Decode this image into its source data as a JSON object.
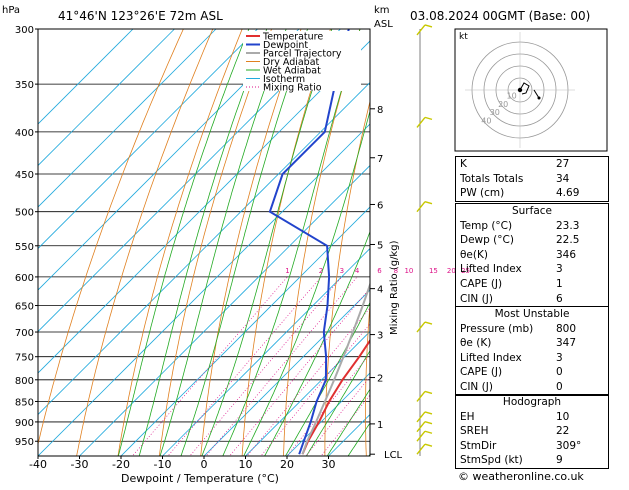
{
  "header": {
    "hpa_label": "hPa",
    "location": "41°46'N 123°26'E 72m ASL",
    "km_label": "km",
    "asl_label": "ASL",
    "date": "03.08.2024 00GMT (Base: 00)"
  },
  "colors": {
    "temperature": "#e03030",
    "dewpoint": "#2244cc",
    "parcel": "#aaaaaa",
    "dry_adiabat": "#e08020",
    "wet_adiabat": "#22aa22",
    "isotherm": "#22aadd",
    "mixing_ratio": "#dd1188",
    "wind": "#c8c800"
  },
  "chart_data": {
    "type": "line",
    "title": "41°46'N 123°26'E 72m ASL",
    "xlabel": "Dewpoint / Temperature (°C)",
    "ylabel": "hPa",
    "right_label": "Mixing Ratio (g/kg)",
    "xlim": [
      -40,
      40
    ],
    "ylim": [
      990,
      300
    ],
    "x_ticks": [
      -40,
      -30,
      -20,
      -10,
      0,
      10,
      20,
      30
    ],
    "pressure_ticks": [
      300,
      350,
      400,
      450,
      500,
      550,
      600,
      650,
      700,
      750,
      800,
      850,
      900,
      950
    ],
    "km_ticks": [
      {
        "km": "1",
        "p": 905
      },
      {
        "km": "2",
        "p": 795
      },
      {
        "km": "3",
        "p": 705
      },
      {
        "km": "4",
        "p": 620
      },
      {
        "km": "5",
        "p": 548
      },
      {
        "km": "6",
        "p": 490
      },
      {
        "km": "7",
        "p": 430
      },
      {
        "km": "8",
        "p": 375
      }
    ],
    "lcl_label": "LCL",
    "lcl_p": 985,
    "mixing_ratio_labels": [
      "1",
      "2",
      "3",
      "4",
      "6",
      "8",
      "10",
      "15",
      "20",
      "25"
    ],
    "legend": [
      "Temperature",
      "Dewpoint",
      "Parcel Trajectory",
      "Dry Adiabat",
      "Wet Adiabat",
      "Isotherm",
      "Mixing Ratio"
    ],
    "series": [
      {
        "name": "Temperature",
        "p": [
          985,
          950,
          900,
          850,
          800,
          750,
          700,
          650,
          600,
          550,
          500,
          450,
          400,
          370
        ],
        "t": [
          23.3,
          21.5,
          19.5,
          17.0,
          15.0,
          13.5,
          11.5,
          8.5,
          4.5,
          0.5,
          -3.5,
          -11.0,
          -19.5,
          -25.0
        ]
      },
      {
        "name": "Dewpoint",
        "p": [
          985,
          950,
          900,
          850,
          800,
          750,
          700,
          650,
          600,
          550,
          500,
          450,
          400,
          350,
          300
        ],
        "t": [
          22.5,
          20.5,
          17.5,
          14.0,
          11.0,
          5.5,
          -1.0,
          -6.5,
          -13.0,
          -21.0,
          -43.0,
          -49.0,
          -49.0,
          -58.0,
          -68.0
        ]
      },
      {
        "name": "Parcel Trajectory",
        "p": [
          985,
          950,
          900,
          850,
          800,
          750,
          700,
          650,
          600,
          550,
          500,
          450,
          400,
          370
        ],
        "t": [
          23.3,
          21.3,
          18.8,
          16.0,
          13.0,
          9.7,
          6.0,
          2.0,
          -2.5,
          -7.5,
          -13.5,
          -20.5,
          -28.5,
          -34.0
        ]
      }
    ]
  },
  "hodograph": {
    "label": "kt",
    "ring_labels": [
      "10",
      "20",
      "30",
      "40"
    ]
  },
  "indices": {
    "k_label": "K",
    "k_value": "27",
    "tt_label": "Totals Totals",
    "tt_value": "34",
    "pw_label": "PW (cm)",
    "pw_value": "4.69"
  },
  "surface": {
    "title": "Surface",
    "rows": [
      {
        "k": "Temp (°C)",
        "v": "23.3"
      },
      {
        "k": "Dewp (°C)",
        "v": "22.5"
      },
      {
        "k": "θe(K)",
        "v": "346"
      },
      {
        "k": "Lifted Index",
        "v": "3"
      },
      {
        "k": "CAPE (J)",
        "v": "1"
      },
      {
        "k": "CIN (J)",
        "v": "6"
      }
    ]
  },
  "most_unstable": {
    "title": "Most Unstable",
    "rows": [
      {
        "k": "Pressure (mb)",
        "v": "800"
      },
      {
        "k": "θe (K)",
        "v": "347"
      },
      {
        "k": "Lifted Index",
        "v": "3"
      },
      {
        "k": "CAPE (J)",
        "v": "0"
      },
      {
        "k": "CIN (J)",
        "v": "0"
      }
    ]
  },
  "hodograph_table": {
    "title": "Hodograph",
    "rows": [
      {
        "k": "EH",
        "v": "10"
      },
      {
        "k": "SREH",
        "v": "22"
      },
      {
        "k": "StmDir",
        "v": "309°"
      },
      {
        "k": "StmSpd (kt)",
        "v": "9"
      }
    ]
  },
  "footer": {
    "copyright": "© weatheronline.co.uk"
  }
}
